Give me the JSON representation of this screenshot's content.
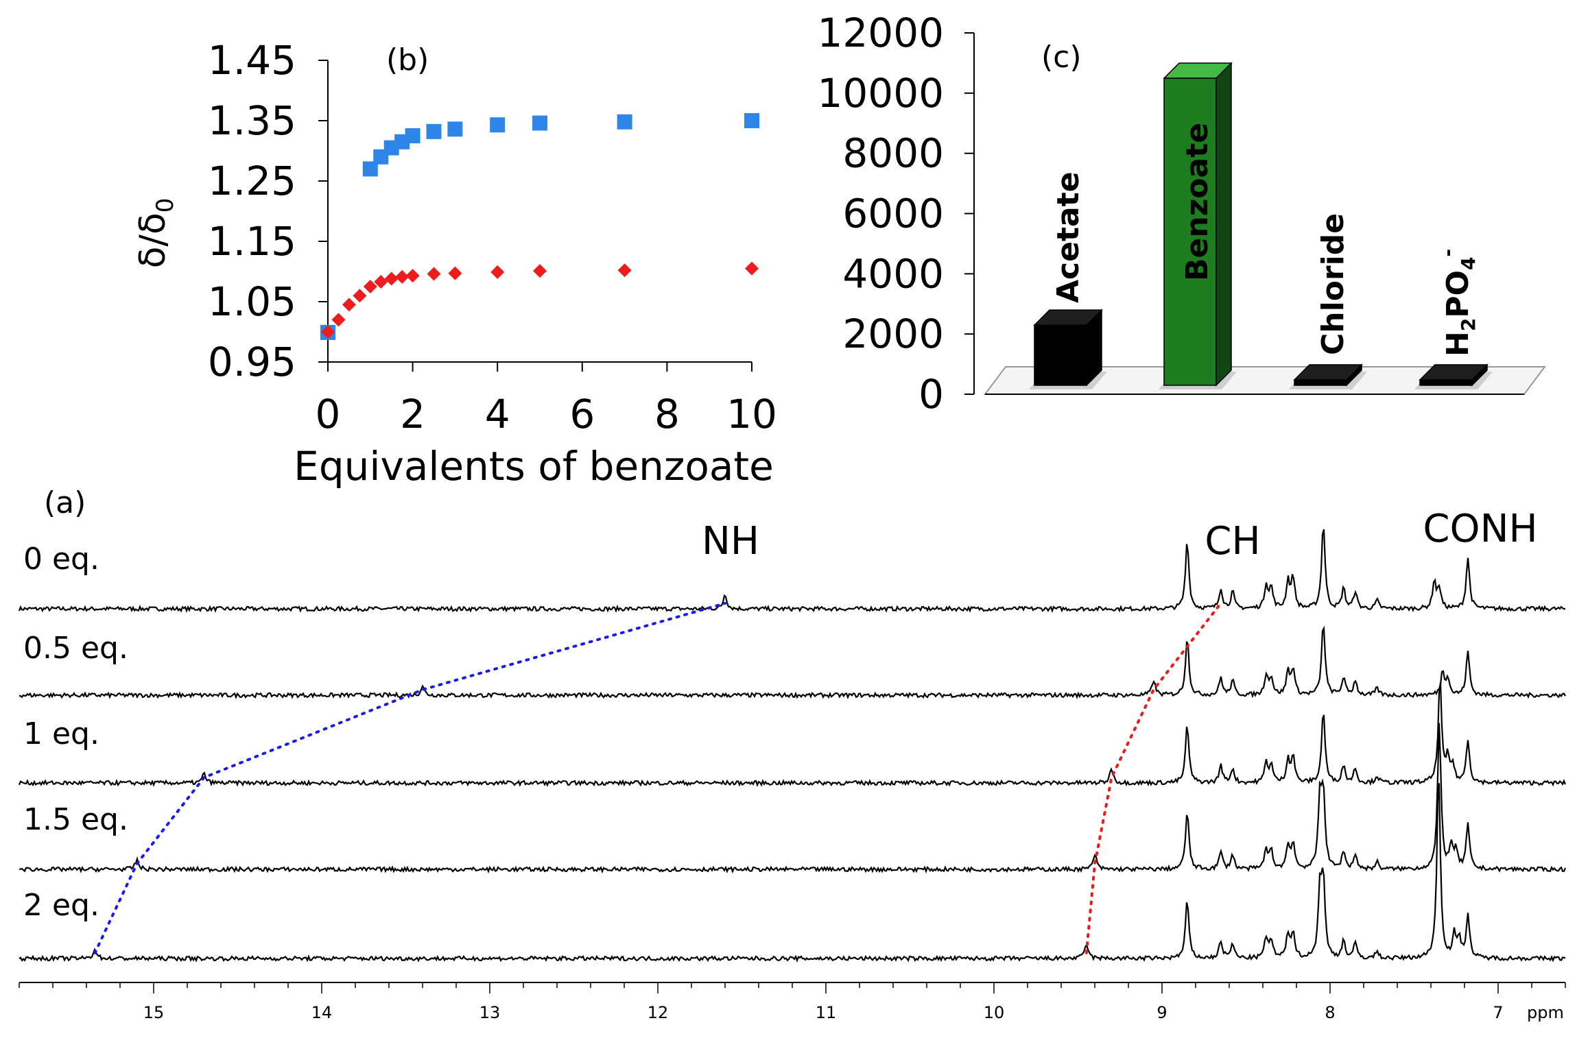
{
  "figure": {
    "panel_a": "(a)",
    "panel_b": "(b)",
    "panel_c": "(c)"
  },
  "chart_data": [
    {
      "id": "b",
      "type": "scatter",
      "title": "(b)",
      "xlabel": "Equivalents of benzoate",
      "ylabel_main": "δ/δ",
      "ylabel_sub": "0",
      "xlim": [
        0,
        10
      ],
      "ylim": [
        0.95,
        1.45
      ],
      "xticks": [
        "0",
        "2",
        "4",
        "6",
        "8",
        "10"
      ],
      "yticks": [
        "0.95",
        "1.05",
        "1.15",
        "1.25",
        "1.35",
        "1.45"
      ],
      "series": [
        {
          "name": "NH",
          "color": "#2e86e8",
          "marker": "square",
          "x": [
            0,
            1.0,
            1.25,
            1.5,
            1.75,
            2.0,
            2.5,
            3.0,
            4.0,
            5.0,
            7.0,
            10.0
          ],
          "y": [
            0.999,
            1.27,
            1.29,
            1.305,
            1.315,
            1.325,
            1.332,
            1.336,
            1.343,
            1.346,
            1.348,
            1.35
          ]
        },
        {
          "name": "CH",
          "color": "#ee1c1c",
          "marker": "diamond",
          "x": [
            0,
            0.25,
            0.5,
            0.75,
            1.0,
            1.25,
            1.5,
            1.75,
            2.0,
            2.5,
            3.0,
            4.0,
            5.0,
            7.0,
            10.0
          ],
          "y": [
            1.0,
            1.02,
            1.045,
            1.06,
            1.075,
            1.083,
            1.088,
            1.091,
            1.093,
            1.096,
            1.097,
            1.099,
            1.101,
            1.102,
            1.105
          ]
        }
      ]
    },
    {
      "id": "c",
      "type": "bar",
      "title": "(c)",
      "categories": [
        "Acetate",
        "Benzoate",
        "Chloride",
        "H2PO4-"
      ],
      "values": [
        2000,
        10200,
        40,
        40
      ],
      "colors": [
        "#000000",
        "#1e7d1e",
        "#000000",
        "#000000"
      ],
      "ylim": [
        0,
        12000
      ],
      "yticks": [
        "0",
        "2000",
        "4000",
        "6000",
        "8000",
        "10000",
        "12000"
      ],
      "label_h2po4": {
        "h": "H",
        "sub2": "2",
        "po": "PO",
        "sub4": "4",
        "sup": "-"
      }
    },
    {
      "id": "a",
      "type": "line",
      "title": "(a)",
      "xlabel": "ppm",
      "xlim": [
        15.8,
        6.6
      ],
      "xticks": [
        "15",
        "14",
        "13",
        "12",
        "11",
        "10",
        "9",
        "8",
        "7"
      ],
      "xticks_vals": [
        15,
        14,
        13,
        12,
        11,
        10,
        9,
        8,
        7
      ],
      "traces": [
        "0 eq.",
        "0.5 eq.",
        "1 eq.",
        "1.5 eq.",
        "2 eq."
      ],
      "nh_shift_ppm": [
        11.6,
        13.4,
        14.7,
        15.1,
        15.35
      ],
      "ch_shift_ppm": [
        8.65,
        9.05,
        9.3,
        9.4,
        9.45
      ],
      "peak_labels": [
        "NH",
        "CH",
        "CONH"
      ]
    }
  ]
}
